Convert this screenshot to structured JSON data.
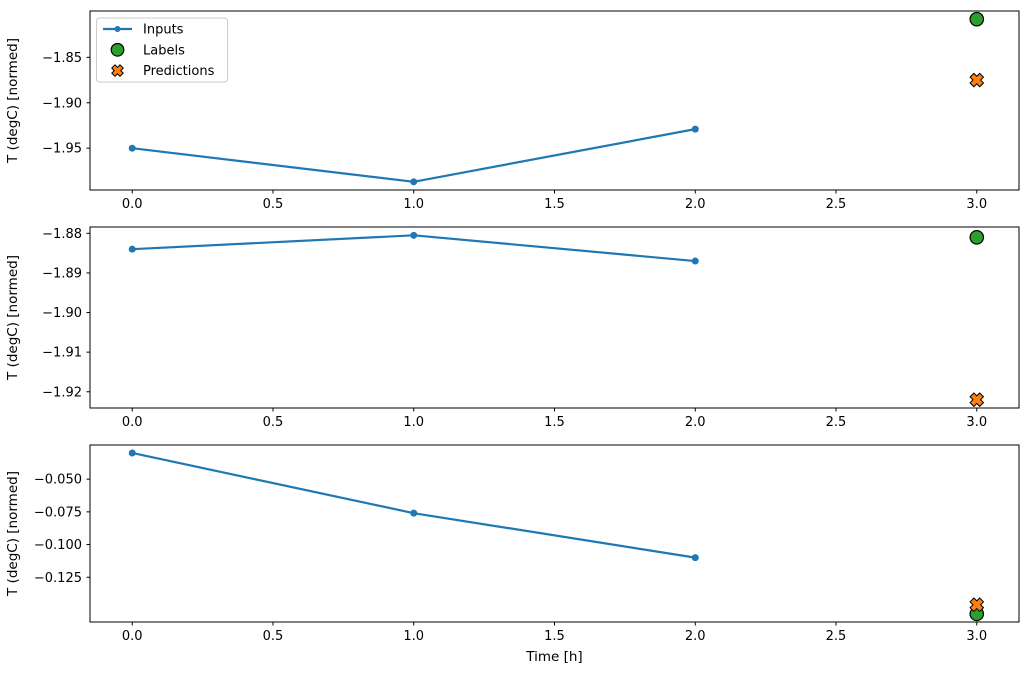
{
  "figure": {
    "background": "#ffffff",
    "xlabel": "Time [h]",
    "ylabel": "T (degC) [normed]",
    "legend": {
      "background": "#ffffff",
      "border_color": "#cccccc",
      "entries": [
        {
          "label": "Inputs",
          "marker": "line-dot",
          "color": "#1f77b4",
          "edge": "none"
        },
        {
          "label": "Labels",
          "marker": "circle",
          "color": "#2ca02c",
          "edge": "#000000"
        },
        {
          "label": "Predictions",
          "marker": "X",
          "color": "#ff7f0e",
          "edge": "#000000"
        }
      ]
    }
  },
  "chart_data": [
    {
      "type": "line",
      "ylabel": "T (degC) [normed]",
      "xlabel": "",
      "show_legend": true,
      "xlim": [
        -0.15,
        3.15
      ],
      "ylim": [
        -1.996,
        -1.799
      ],
      "xticks": [
        0.0,
        0.5,
        1.0,
        1.5,
        2.0,
        2.5,
        3.0
      ],
      "xtick_labels": [
        "0.0",
        "0.5",
        "1.0",
        "1.5",
        "2.0",
        "2.5",
        "3.0"
      ],
      "yticks": [
        -1.85,
        -1.9,
        -1.95
      ],
      "ytick_labels": [
        "−1.85",
        "−1.90",
        "−1.95"
      ],
      "series": [
        {
          "name": "Inputs",
          "type": "line",
          "marker": "dot",
          "color": "#1f77b4",
          "x": [
            0,
            1,
            2
          ],
          "y": [
            -1.95,
            -1.987,
            -1.929
          ]
        },
        {
          "name": "Labels",
          "type": "scatter",
          "marker": "circle",
          "color": "#2ca02c",
          "x": [
            3
          ],
          "y": [
            -1.808
          ]
        },
        {
          "name": "Predictions",
          "type": "scatter",
          "marker": "X",
          "color": "#ff7f0e",
          "x": [
            3
          ],
          "y": [
            -1.875
          ]
        }
      ]
    },
    {
      "type": "line",
      "ylabel": "T (degC) [normed]",
      "xlabel": "",
      "show_legend": false,
      "xlim": [
        -0.15,
        3.15
      ],
      "ylim": [
        -1.9241,
        -1.8784
      ],
      "xticks": [
        0.0,
        0.5,
        1.0,
        1.5,
        2.0,
        2.5,
        3.0
      ],
      "xtick_labels": [
        "0.0",
        "0.5",
        "1.0",
        "1.5",
        "2.0",
        "2.5",
        "3.0"
      ],
      "yticks": [
        -1.88,
        -1.89,
        -1.9,
        -1.91,
        -1.92
      ],
      "ytick_labels": [
        "−1.88",
        "−1.89",
        "−1.90",
        "−1.91",
        "−1.92"
      ],
      "series": [
        {
          "name": "Inputs",
          "type": "line",
          "marker": "dot",
          "color": "#1f77b4",
          "x": [
            0,
            1,
            2
          ],
          "y": [
            -1.884,
            -1.8805,
            -1.887
          ]
        },
        {
          "name": "Labels",
          "type": "scatter",
          "marker": "circle",
          "color": "#2ca02c",
          "x": [
            3
          ],
          "y": [
            -1.881
          ]
        },
        {
          "name": "Predictions",
          "type": "scatter",
          "marker": "X",
          "color": "#ff7f0e",
          "x": [
            3
          ],
          "y": [
            -1.922
          ]
        }
      ]
    },
    {
      "type": "line",
      "ylabel": "T (degC) [normed]",
      "xlabel": "Time [h]",
      "show_legend": false,
      "xlim": [
        -0.15,
        3.15
      ],
      "ylim": [
        -0.1592,
        -0.0239
      ],
      "xticks": [
        0.0,
        0.5,
        1.0,
        1.5,
        2.0,
        2.5,
        3.0
      ],
      "xtick_labels": [
        "0.0",
        "0.5",
        "1.0",
        "1.5",
        "2.0",
        "2.5",
        "3.0"
      ],
      "yticks": [
        -0.05,
        -0.075,
        -0.1,
        -0.125
      ],
      "ytick_labels": [
        "−0.050",
        "−0.075",
        "−0.100",
        "−0.125"
      ],
      "series": [
        {
          "name": "Inputs",
          "type": "line",
          "marker": "dot",
          "color": "#1f77b4",
          "x": [
            0,
            1,
            2
          ],
          "y": [
            -0.03,
            -0.076,
            -0.11
          ]
        },
        {
          "name": "Labels",
          "type": "scatter",
          "marker": "circle",
          "color": "#2ca02c",
          "x": [
            3
          ],
          "y": [
            -0.153
          ]
        },
        {
          "name": "Predictions",
          "type": "scatter",
          "marker": "X",
          "color": "#ff7f0e",
          "x": [
            3
          ],
          "y": [
            -0.146
          ]
        }
      ]
    }
  ]
}
